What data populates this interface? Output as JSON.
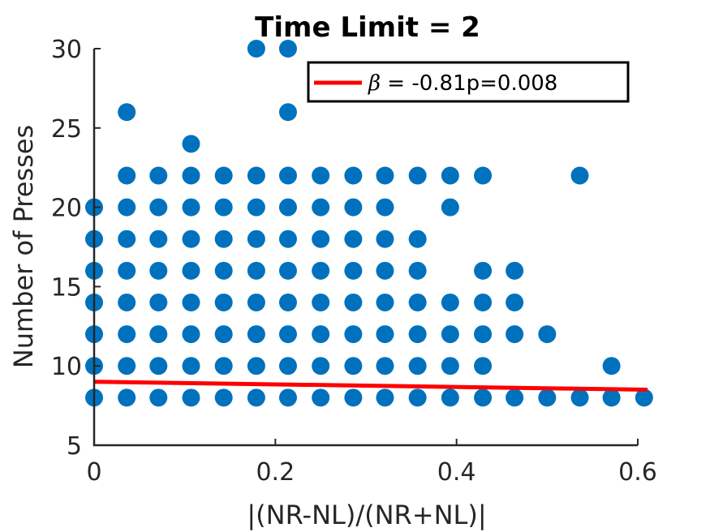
{
  "chart_data": {
    "type": "scatter",
    "title": "Time Limit =  2",
    "xlabel": "|(NR-NL)/(NR+NL)|",
    "ylabel": "Number of Presses",
    "xlim": [
      0,
      0.6
    ],
    "ylim": [
      5,
      30
    ],
    "x_ticks": [
      "0",
      "0.2",
      "0.4",
      "0.6"
    ],
    "y_ticks": [
      "5",
      "10",
      "15",
      "20",
      "25",
      "30"
    ],
    "grid": false,
    "legend_position": "top-right",
    "legend": {
      "symbol": "β",
      "text": " =  -0.81p=0.008"
    },
    "colors": {
      "points": "#0072BD",
      "fit": "#FF0000",
      "axis": "#262626"
    },
    "fit_line": {
      "x": [
        0,
        0.6
      ],
      "y": [
        9,
        8.5
      ]
    },
    "points": [
      {
        "x": 0,
        "y": 8
      },
      {
        "x": 0,
        "y": 10
      },
      {
        "x": 0,
        "y": 12
      },
      {
        "x": 0,
        "y": 14
      },
      {
        "x": 0,
        "y": 16
      },
      {
        "x": 0,
        "y": 18
      },
      {
        "x": 0,
        "y": 20
      },
      {
        "x": 0.036,
        "y": 8
      },
      {
        "x": 0.036,
        "y": 10
      },
      {
        "x": 0.036,
        "y": 12
      },
      {
        "x": 0.036,
        "y": 14
      },
      {
        "x": 0.036,
        "y": 16
      },
      {
        "x": 0.036,
        "y": 18
      },
      {
        "x": 0.036,
        "y": 20
      },
      {
        "x": 0.036,
        "y": 22
      },
      {
        "x": 0.036,
        "y": 26
      },
      {
        "x": 0.071,
        "y": 8
      },
      {
        "x": 0.071,
        "y": 10
      },
      {
        "x": 0.071,
        "y": 12
      },
      {
        "x": 0.071,
        "y": 14
      },
      {
        "x": 0.071,
        "y": 16
      },
      {
        "x": 0.071,
        "y": 18
      },
      {
        "x": 0.071,
        "y": 20
      },
      {
        "x": 0.071,
        "y": 22
      },
      {
        "x": 0.107,
        "y": 8
      },
      {
        "x": 0.107,
        "y": 10
      },
      {
        "x": 0.107,
        "y": 12
      },
      {
        "x": 0.107,
        "y": 14
      },
      {
        "x": 0.107,
        "y": 16
      },
      {
        "x": 0.107,
        "y": 18
      },
      {
        "x": 0.107,
        "y": 20
      },
      {
        "x": 0.107,
        "y": 22
      },
      {
        "x": 0.107,
        "y": 24
      },
      {
        "x": 0.143,
        "y": 8
      },
      {
        "x": 0.143,
        "y": 10
      },
      {
        "x": 0.143,
        "y": 12
      },
      {
        "x": 0.143,
        "y": 14
      },
      {
        "x": 0.143,
        "y": 16
      },
      {
        "x": 0.143,
        "y": 18
      },
      {
        "x": 0.143,
        "y": 20
      },
      {
        "x": 0.143,
        "y": 22
      },
      {
        "x": 0.179,
        "y": 8
      },
      {
        "x": 0.179,
        "y": 10
      },
      {
        "x": 0.179,
        "y": 12
      },
      {
        "x": 0.179,
        "y": 14
      },
      {
        "x": 0.179,
        "y": 16
      },
      {
        "x": 0.179,
        "y": 18
      },
      {
        "x": 0.179,
        "y": 20
      },
      {
        "x": 0.179,
        "y": 22
      },
      {
        "x": 0.179,
        "y": 30
      },
      {
        "x": 0.214,
        "y": 8
      },
      {
        "x": 0.214,
        "y": 10
      },
      {
        "x": 0.214,
        "y": 12
      },
      {
        "x": 0.214,
        "y": 14
      },
      {
        "x": 0.214,
        "y": 16
      },
      {
        "x": 0.214,
        "y": 18
      },
      {
        "x": 0.214,
        "y": 20
      },
      {
        "x": 0.214,
        "y": 22
      },
      {
        "x": 0.214,
        "y": 26
      },
      {
        "x": 0.214,
        "y": 30
      },
      {
        "x": 0.25,
        "y": 8
      },
      {
        "x": 0.25,
        "y": 10
      },
      {
        "x": 0.25,
        "y": 12
      },
      {
        "x": 0.25,
        "y": 14
      },
      {
        "x": 0.25,
        "y": 16
      },
      {
        "x": 0.25,
        "y": 18
      },
      {
        "x": 0.25,
        "y": 20
      },
      {
        "x": 0.25,
        "y": 22
      },
      {
        "x": 0.286,
        "y": 8
      },
      {
        "x": 0.286,
        "y": 10
      },
      {
        "x": 0.286,
        "y": 12
      },
      {
        "x": 0.286,
        "y": 14
      },
      {
        "x": 0.286,
        "y": 16
      },
      {
        "x": 0.286,
        "y": 18
      },
      {
        "x": 0.286,
        "y": 20
      },
      {
        "x": 0.286,
        "y": 22
      },
      {
        "x": 0.321,
        "y": 8
      },
      {
        "x": 0.321,
        "y": 10
      },
      {
        "x": 0.321,
        "y": 12
      },
      {
        "x": 0.321,
        "y": 14
      },
      {
        "x": 0.321,
        "y": 16
      },
      {
        "x": 0.321,
        "y": 18
      },
      {
        "x": 0.321,
        "y": 20
      },
      {
        "x": 0.321,
        "y": 22
      },
      {
        "x": 0.357,
        "y": 8
      },
      {
        "x": 0.357,
        "y": 10
      },
      {
        "x": 0.357,
        "y": 12
      },
      {
        "x": 0.357,
        "y": 14
      },
      {
        "x": 0.357,
        "y": 16
      },
      {
        "x": 0.357,
        "y": 18
      },
      {
        "x": 0.357,
        "y": 22
      },
      {
        "x": 0.393,
        "y": 8
      },
      {
        "x": 0.393,
        "y": 10
      },
      {
        "x": 0.393,
        "y": 12
      },
      {
        "x": 0.393,
        "y": 14
      },
      {
        "x": 0.393,
        "y": 20
      },
      {
        "x": 0.393,
        "y": 22
      },
      {
        "x": 0.429,
        "y": 8
      },
      {
        "x": 0.429,
        "y": 10
      },
      {
        "x": 0.429,
        "y": 12
      },
      {
        "x": 0.429,
        "y": 14
      },
      {
        "x": 0.429,
        "y": 16
      },
      {
        "x": 0.429,
        "y": 22
      },
      {
        "x": 0.464,
        "y": 8
      },
      {
        "x": 0.464,
        "y": 12
      },
      {
        "x": 0.464,
        "y": 14
      },
      {
        "x": 0.464,
        "y": 16
      },
      {
        "x": 0.5,
        "y": 8
      },
      {
        "x": 0.5,
        "y": 12
      },
      {
        "x": 0.536,
        "y": 8
      },
      {
        "x": 0.536,
        "y": 22
      },
      {
        "x": 0.571,
        "y": 8
      },
      {
        "x": 0.571,
        "y": 10
      },
      {
        "x": 0.607,
        "y": 8
      }
    ]
  }
}
